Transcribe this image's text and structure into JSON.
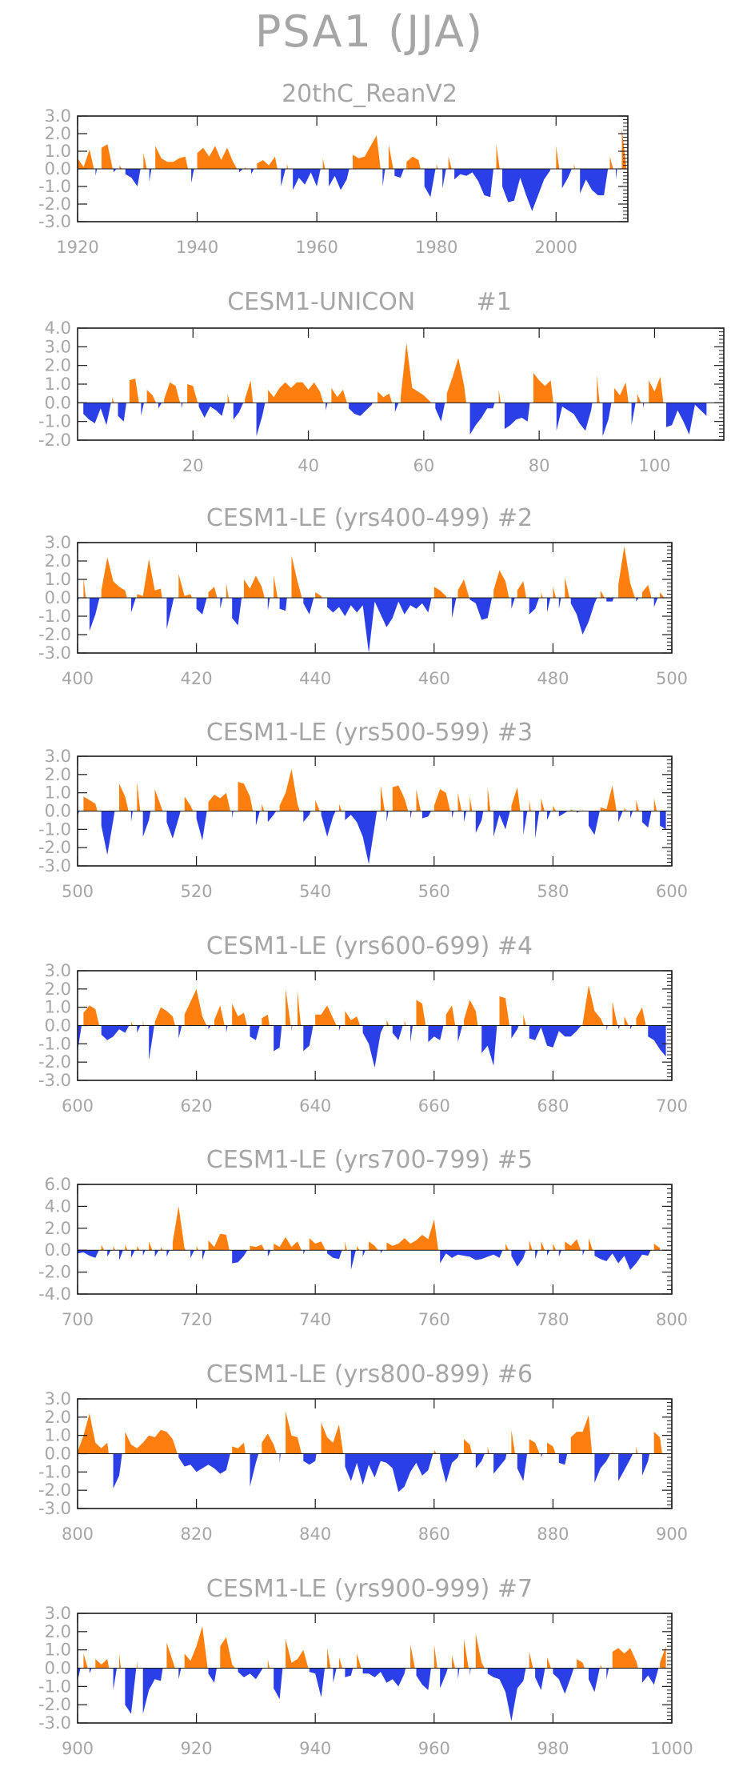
{
  "title": "PSA1 (JJA)",
  "colors": {
    "positive": "#ff7f0e",
    "negative": "#2b3fe6",
    "axis": "#1a1a1a",
    "label": "#a6a6a6"
  },
  "chart_data": [
    {
      "type": "area",
      "title": "20thC_ReanV2",
      "xlim": [
        1920,
        2012
      ],
      "ylim": [
        -3,
        3
      ],
      "xticks": [
        "1920",
        "1940",
        "1960",
        "1980",
        "2000"
      ],
      "yticks": [
        "3.0",
        "2.0",
        "1.0",
        "0.0",
        "-1.0",
        "-2.0",
        "-3.0"
      ],
      "x_start": 1920,
      "values": [
        0.6,
        0.1,
        1.1,
        -0.4,
        1.2,
        1.4,
        -0.2,
        0.2,
        -0.3,
        -0.5,
        -1.0,
        0.9,
        -0.7,
        1.3,
        0.6,
        0.4,
        0.4,
        0.6,
        0.7,
        -0.8,
        0.9,
        1.2,
        0.7,
        1.3,
        0.5,
        1.2,
        0.4,
        -0.2,
        0.1,
        -0.3,
        0.3,
        0.5,
        0.2,
        0.7,
        -1.0,
        0.3,
        -1.2,
        -0.5,
        -0.9,
        -0.2,
        -1.0,
        0.6,
        -1.0,
        -0.4,
        -1.2,
        -0.6,
        0.8,
        0.6,
        0.7,
        1.3,
        1.9,
        -1.0,
        1.4,
        -0.4,
        -0.5,
        0.4,
        0.7,
        0.5,
        -1.0,
        -1.6,
        0.3,
        -1.1,
        0.7,
        -0.6,
        -0.3,
        -0.4,
        -0.2,
        -0.7,
        -1.5,
        -1.6,
        1.4,
        -1.0,
        -1.9,
        -1.8,
        -0.5,
        -1.5,
        -2.4,
        -1.5,
        -0.6,
        -0.1,
        1.3,
        -1.1,
        -0.5,
        0.3,
        -1.4,
        -0.6,
        -1.2,
        -1.5,
        -1.5,
        0.7,
        -0.6,
        2.3,
        -0.7
      ]
    },
    {
      "type": "area",
      "title": "CESM1-UNICON",
      "tag": "#1",
      "xlim": [
        0,
        112
      ],
      "ylim": [
        -2,
        4
      ],
      "xticks": [
        "20",
        "40",
        "60",
        "80",
        "100"
      ],
      "yticks": [
        "4.0",
        "3.0",
        "2.0",
        "1.0",
        "0.0",
        "-1.0",
        "-2.0"
      ],
      "x_start": 1,
      "values": [
        -0.6,
        -0.9,
        -1.1,
        -0.3,
        -1.2,
        0.3,
        -0.7,
        -1.0,
        1.2,
        1.3,
        -0.7,
        0.7,
        0.4,
        -0.3,
        0.2,
        1.1,
        0.9,
        -0.3,
        1.0,
        0.9,
        -0.2,
        -0.8,
        -0.2,
        -0.4,
        -0.7,
        0.5,
        -0.9,
        -0.5,
        0.2,
        1.2,
        -1.8,
        -0.7,
        0.7,
        0.3,
        0.8,
        1.1,
        0.8,
        1.1,
        1.1,
        0.7,
        1.1,
        0.6,
        -0.4,
        0.8,
        0.3,
        0.7,
        -0.3,
        -0.6,
        -0.7,
        -0.4,
        -0.1,
        0.6,
        0.3,
        0.5,
        -0.5,
        0.3,
        3.2,
        0.8,
        0.6,
        0.4,
        0.1,
        -0.3,
        -1.0,
        0.5,
        1.4,
        2.4,
        0.9,
        -1.7,
        -1.2,
        -0.8,
        -0.3,
        -0.3,
        0.7,
        -1.4,
        -1.2,
        -0.9,
        -0.8,
        -1.0,
        1.6,
        1.2,
        0.9,
        1.2,
        -1.5,
        -0.2,
        -0.4,
        -0.6,
        -1.1,
        -1.5,
        -0.4,
        1.5,
        -1.8,
        -0.9,
        0.8,
        0.4,
        1.1,
        -1.2,
        0.5,
        -0.3,
        1.2,
        0.6,
        1.4,
        -1.3,
        -1.2,
        -0.4,
        -1.0,
        -1.7,
        -0.1,
        -0.4,
        -0.7
      ]
    },
    {
      "type": "area",
      "title": "CESM1-LE (yrs400-499)",
      "tag": "#2",
      "xlim": [
        400,
        500
      ],
      "ylim": [
        -3,
        3
      ],
      "xticks": [
        "400",
        "420",
        "440",
        "460",
        "480",
        "500"
      ],
      "yticks": [
        "3.0",
        "2.0",
        "1.0",
        "0.0",
        "-1.0",
        "-2.0",
        "-3.0"
      ],
      "x_start": 400,
      "values": [
        -0.3,
        1.1,
        -1.8,
        -0.9,
        0.4,
        2.2,
        0.9,
        0.6,
        0.4,
        -0.8,
        0.2,
        0.1,
        2.1,
        0.4,
        0.5,
        -1.7,
        -0.3,
        1.3,
        0.1,
        0.2,
        -0.6,
        -0.9,
        0.3,
        0.6,
        -0.6,
        0.8,
        -1.1,
        -1.5,
        1.0,
        0.5,
        1.2,
        0.6,
        -0.7,
        1.2,
        -0.6,
        -0.7,
        2.3,
        0.9,
        -0.3,
        -0.9,
        0.3,
        0.1,
        -0.5,
        -0.8,
        -0.5,
        -1.0,
        -0.4,
        -0.8,
        -0.4,
        -3.0,
        -0.2,
        -0.9,
        -1.6,
        -1.1,
        -0.2,
        -0.9,
        -0.4,
        -0.6,
        -0.3,
        -0.8,
        0.6,
        0.4,
        0.1,
        -1.1,
        0.4,
        1.0,
        -0.1,
        -0.3,
        -1.2,
        -1.1,
        0.4,
        1.5,
        0.9,
        -0.6,
        0.4,
        0.9,
        -0.9,
        -0.6,
        0.3,
        -0.8,
        0.6,
        -0.6,
        1.1,
        -0.3,
        -0.9,
        -2.0,
        -1.3,
        -0.3,
        0.4,
        -0.2,
        -0.2,
        0.7,
        2.8,
        0.8,
        -0.2,
        0.3,
        0.7,
        -0.5,
        0.3,
        -0.1
      ]
    },
    {
      "type": "area",
      "title": "CESM1-LE (yrs500-599)",
      "tag": "#3",
      "xlim": [
        500,
        600
      ],
      "ylim": [
        -3,
        3
      ],
      "xticks": [
        "500",
        "520",
        "540",
        "560",
        "580",
        "600"
      ],
      "yticks": [
        "3.0",
        "2.0",
        "1.0",
        "0.0",
        "-1.0",
        "-2.0",
        "-3.0"
      ],
      "x_start": 500,
      "values": [
        -0.3,
        0.8,
        0.6,
        0.4,
        -0.8,
        -2.4,
        -0.5,
        1.5,
        0.8,
        -0.6,
        1.6,
        -1.4,
        -0.5,
        1.2,
        0.3,
        -0.6,
        -1.5,
        -0.4,
        0.8,
        0.3,
        -0.4,
        -1.6,
        0.5,
        0.9,
        0.7,
        1.0,
        -0.4,
        1.6,
        1.5,
        0.8,
        -0.8,
        0.4,
        -0.6,
        -0.2,
        0.3,
        1.0,
        2.3,
        0.4,
        -0.6,
        -0.2,
        0.6,
        -0.2,
        -1.4,
        -0.3,
        0.4,
        -0.5,
        -0.2,
        -0.6,
        -1.4,
        -2.9,
        -0.8,
        1.4,
        -0.6,
        1.3,
        1.4,
        0.7,
        -0.4,
        1.2,
        -0.4,
        -0.3,
        0.3,
        1.2,
        1.0,
        -0.4,
        1.0,
        -0.6,
        0.8,
        -1.2,
        -0.5,
        1.3,
        -1.4,
        -0.2,
        -1.0,
        0.3,
        1.3,
        -1.3,
        0.6,
        -1.5,
        0.7,
        -0.5,
        0.3,
        -0.3,
        -0.1,
        0.1,
        -0.1,
        0.1,
        -0.8,
        -1.3,
        0.2,
        0.1,
        1.4,
        -0.6,
        0.2,
        -0.4,
        0.6,
        -0.6,
        -0.9,
        0.7,
        -0.8,
        -1.0
      ]
    },
    {
      "type": "area",
      "title": "CESM1-LE (yrs600-699)",
      "tag": "#4",
      "xlim": [
        600,
        700
      ],
      "ylim": [
        -3,
        3
      ],
      "xticks": [
        "600",
        "620",
        "640",
        "660",
        "680",
        "700"
      ],
      "yticks": [
        "3.0",
        "2.0",
        "1.0",
        "0.0",
        "-1.0",
        "-2.0",
        "-3.0"
      ],
      "x_start": 600,
      "values": [
        -1.4,
        0.7,
        1.1,
        0.9,
        -0.5,
        -0.8,
        -0.6,
        -0.2,
        -0.4,
        0.2,
        -0.4,
        0.3,
        -1.9,
        0.2,
        1.0,
        0.8,
        0.5,
        -0.7,
        0.6,
        1.3,
        2.0,
        0.5,
        -0.2,
        0.3,
        1.1,
        -0.4,
        1.2,
        0.5,
        0.7,
        -0.6,
        -0.8,
        0.4,
        0.6,
        -1.4,
        -1.2,
        2.0,
        -0.3,
        1.9,
        -1.4,
        -1.1,
        0.6,
        0.6,
        1.1,
        0.4,
        -0.3,
        0.8,
        0.3,
        0.5,
        -0.4,
        -1.0,
        -2.3,
        -0.4,
        0.3,
        -0.4,
        -0.8,
        0.3,
        -0.9,
        1.4,
        1.2,
        -0.9,
        -0.6,
        -0.8,
        0.6,
        1.1,
        -0.9,
        0.3,
        1.4,
        0.8,
        -1.5,
        -1.1,
        -2.2,
        1.6,
        1.5,
        -0.7,
        -0.2,
        0.6,
        -0.7,
        -0.8,
        -0.1,
        -1.1,
        -1.2,
        -0.3,
        -0.6,
        -0.6,
        -0.3,
        0.1,
        2.2,
        0.8,
        0.4,
        -0.3,
        1.3,
        -0.2,
        0.5,
        -0.2,
        0.4,
        1.0,
        -0.6,
        -0.8,
        -1.3,
        -1.7
      ]
    },
    {
      "type": "area",
      "title": "CESM1-LE (yrs700-799)",
      "tag": "#5",
      "xlim": [
        700,
        800
      ],
      "ylim": [
        -4,
        6
      ],
      "xticks": [
        "700",
        "720",
        "740",
        "760",
        "780",
        "800"
      ],
      "yticks": [
        "6.0",
        "4.0",
        "2.0",
        "0.0",
        "-2.0",
        "-4.0"
      ],
      "x_start": 700,
      "values": [
        -0.3,
        -0.2,
        -0.5,
        -0.7,
        0.5,
        -0.6,
        0.4,
        -0.9,
        0.5,
        -0.7,
        0.4,
        -0.5,
        0.8,
        -0.6,
        0.3,
        -0.6,
        0.7,
        4.0,
        0.2,
        -0.7,
        0.4,
        -0.9,
        0.9,
        0.3,
        1.5,
        1.4,
        -1.2,
        -1.1,
        -0.5,
        0.4,
        0.3,
        0.5,
        -0.6,
        0.6,
        0.3,
        1.2,
        0.3,
        0.8,
        -0.4,
        1.1,
        0.6,
        0.8,
        -0.3,
        -0.7,
        -0.8,
        0.8,
        -1.8,
        0.4,
        -0.6,
        0.8,
        0.4,
        -0.3,
        0.7,
        0.4,
        0.6,
        1.1,
        0.6,
        0.9,
        1.4,
        1.0,
        2.8,
        -1.2,
        -0.3,
        -0.7,
        -0.4,
        -0.5,
        -0.6,
        -0.9,
        -0.8,
        -0.6,
        -0.4,
        -0.7,
        0.6,
        -0.5,
        -1.5,
        -0.7,
        0.9,
        -0.8,
        0.8,
        -0.5,
        0.6,
        -0.6,
        0.8,
        0.4,
        1.0,
        -0.5,
        1.1,
        -0.5,
        -0.8,
        -1.0,
        -0.3,
        -1.2,
        -0.5,
        -1.8,
        -1.2,
        -0.4,
        -0.5,
        0.6,
        0.2
      ]
    },
    {
      "type": "area",
      "title": "CESM1-LE (yrs800-899)",
      "tag": "#6",
      "xlim": [
        800,
        900
      ],
      "ylim": [
        -3,
        3
      ],
      "xticks": [
        "800",
        "820",
        "840",
        "860",
        "880",
        "900"
      ],
      "yticks": [
        "3.0",
        "2.0",
        "1.0",
        "0.0",
        "-1.0",
        "-2.0",
        "-3.0"
      ],
      "x_start": 800,
      "values": [
        0.1,
        1.0,
        2.2,
        0.6,
        0.3,
        0.6,
        -1.9,
        -1.2,
        1.2,
        0.5,
        0.3,
        0.6,
        1.0,
        0.9,
        1.3,
        1.2,
        0.8,
        -0.2,
        -0.7,
        -0.6,
        -1.0,
        -0.8,
        -0.6,
        -0.8,
        -1.1,
        -0.9,
        0.4,
        0.3,
        0.6,
        -1.8,
        -0.5,
        0.6,
        1.1,
        0.5,
        -0.5,
        2.3,
        1.0,
        0.9,
        -0.4,
        -0.6,
        -0.4,
        1.7,
        0.9,
        0.6,
        1.6,
        -0.7,
        -1.5,
        -0.5,
        -1.7,
        -0.6,
        -1.3,
        -0.4,
        -0.5,
        -0.8,
        -2.1,
        -1.8,
        -1.0,
        -0.5,
        -1.2,
        -0.9,
        0.2,
        -0.3,
        -1.6,
        -0.5,
        -0.2,
        0.8,
        0.5,
        -0.8,
        -0.4,
        0.4,
        -1.1,
        -0.7,
        -0.3,
        1.3,
        -0.8,
        -1.5,
        0.8,
        0.6,
        -0.2,
        0.6,
        0.4,
        -0.5,
        -0.6,
        0.9,
        1.2,
        1.2,
        2.1,
        -1.6,
        -0.8,
        -0.4,
        0.2,
        -1.5,
        -0.9,
        -0.3,
        0.4,
        -1.2,
        -0.4,
        1.2,
        0.9,
        -1.5
      ]
    },
    {
      "type": "area",
      "title": "CESM1-LE (yrs900-999)",
      "tag": "#7",
      "xlim": [
        900,
        1000
      ],
      "ylim": [
        -3,
        3
      ],
      "xticks": [
        "900",
        "920",
        "940",
        "960",
        "980",
        "1000"
      ],
      "yticks": [
        "3.0",
        "2.0",
        "1.0",
        "0.0",
        "-1.0",
        "-2.0",
        "-3.0"
      ],
      "x_start": 900,
      "values": [
        -0.7,
        0.8,
        -0.3,
        0.5,
        0.2,
        0.5,
        -1.2,
        0.8,
        -2.0,
        -2.5,
        0.4,
        -2.5,
        -1.2,
        -0.6,
        -0.7,
        1.4,
        0.4,
        -0.6,
        0.8,
        0.4,
        1.2,
        2.3,
        -0.3,
        -0.8,
        1.2,
        1.7,
        0.2,
        -0.2,
        -0.5,
        -0.3,
        -0.6,
        -0.1,
        0.5,
        -1.1,
        -1.7,
        1.6,
        0.3,
        0.5,
        1.0,
        -0.2,
        -0.3,
        -1.6,
        1.1,
        -0.8,
        0.6,
        -0.5,
        -0.4,
        0.8,
        -0.3,
        -0.3,
        -0.5,
        -0.2,
        -0.8,
        -0.6,
        -1.0,
        -0.3,
        1.3,
        -0.4,
        -0.9,
        -1.2,
        1.3,
        -1.1,
        -0.3,
        0.7,
        -0.6,
        1.6,
        -0.4,
        1.9,
        0.3,
        -0.3,
        -0.5,
        -0.6,
        -1.3,
        -2.9,
        -1.1,
        -0.7,
        0.9,
        -0.5,
        -1.2,
        0.6,
        -0.3,
        -0.6,
        -1.4,
        -0.5,
        0.5,
        0.3,
        -0.6,
        -1.3,
        0.2,
        -0.6,
        0.9,
        1.1,
        0.8,
        1.1,
        0.4,
        -0.8,
        -0.4,
        -0.9,
        0.3,
        1.2
      ]
    }
  ]
}
